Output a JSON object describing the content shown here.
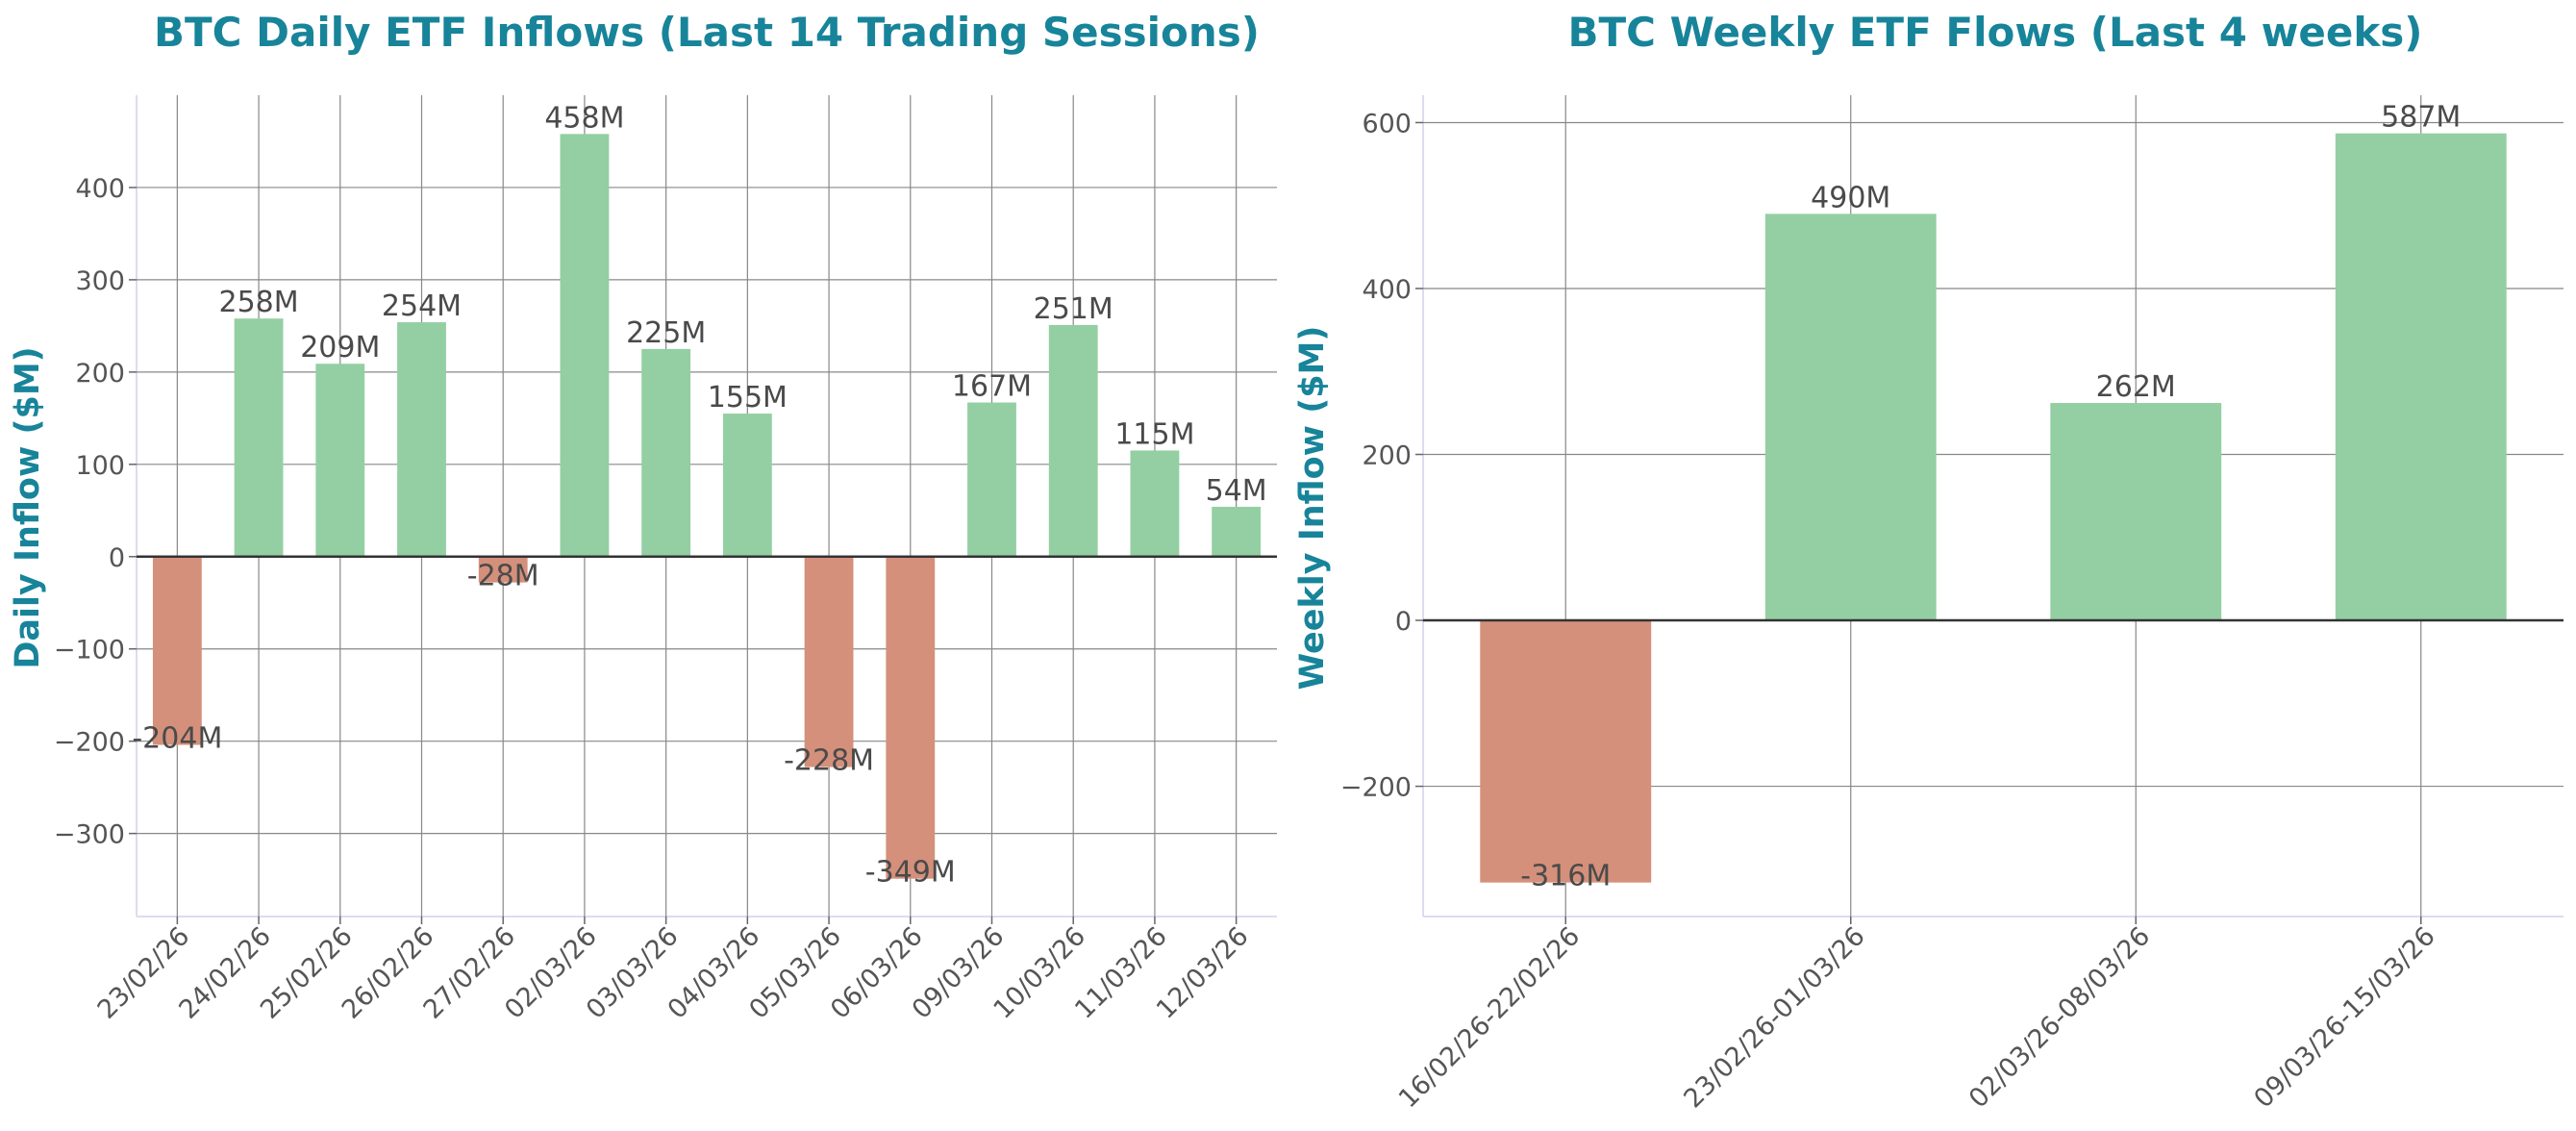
{
  "colors": {
    "positive": "#93cfa2",
    "negative": "#d4907b",
    "title": "#17849a",
    "grid": "#888888",
    "zero_line": "#333333"
  },
  "chart_data": [
    {
      "type": "bar",
      "title": "BTC Daily ETF Inflows (Last 14 Trading Sessions)",
      "xlabel": "",
      "ylabel": "Daily Inflow ($M)",
      "ylim": [
        -390,
        500
      ],
      "yticks": [
        -300,
        -200,
        -100,
        0,
        100,
        200,
        300,
        400
      ],
      "yticklabels": [
        "−300",
        "−200",
        "−100",
        "0",
        "100",
        "200",
        "300",
        "400"
      ],
      "grid": true,
      "categories": [
        "23/02/26",
        "24/02/26",
        "25/02/26",
        "26/02/26",
        "27/02/26",
        "02/03/26",
        "03/03/26",
        "04/03/26",
        "05/03/26",
        "06/03/26",
        "09/03/26",
        "10/03/26",
        "11/03/26",
        "12/03/26"
      ],
      "values": [
        -204,
        258,
        209,
        254,
        -28,
        458,
        225,
        155,
        -228,
        -349,
        167,
        251,
        115,
        54
      ],
      "labels": [
        "-204M",
        "258M",
        "209M",
        "254M",
        "-28M",
        "458M",
        "225M",
        "155M",
        "-228M",
        "-349M",
        "167M",
        "251M",
        "115M",
        "54M"
      ]
    },
    {
      "type": "bar",
      "title": "BTC Weekly ETF Flows (Last 4 weeks)",
      "xlabel": "",
      "ylabel": "Weekly Inflow ($M)",
      "ylim": [
        -357,
        633
      ],
      "yticks": [
        -200,
        0,
        200,
        400,
        600
      ],
      "yticklabels": [
        "−200",
        "0",
        "200",
        "400",
        "600"
      ],
      "grid": true,
      "categories": [
        "16/02/26-22/02/26",
        "23/02/26-01/03/26",
        "02/03/26-08/03/26",
        "09/03/26-15/03/26"
      ],
      "values": [
        -316,
        490,
        262,
        587
      ],
      "labels": [
        "-316M",
        "490M",
        "262M",
        "587M"
      ]
    }
  ]
}
